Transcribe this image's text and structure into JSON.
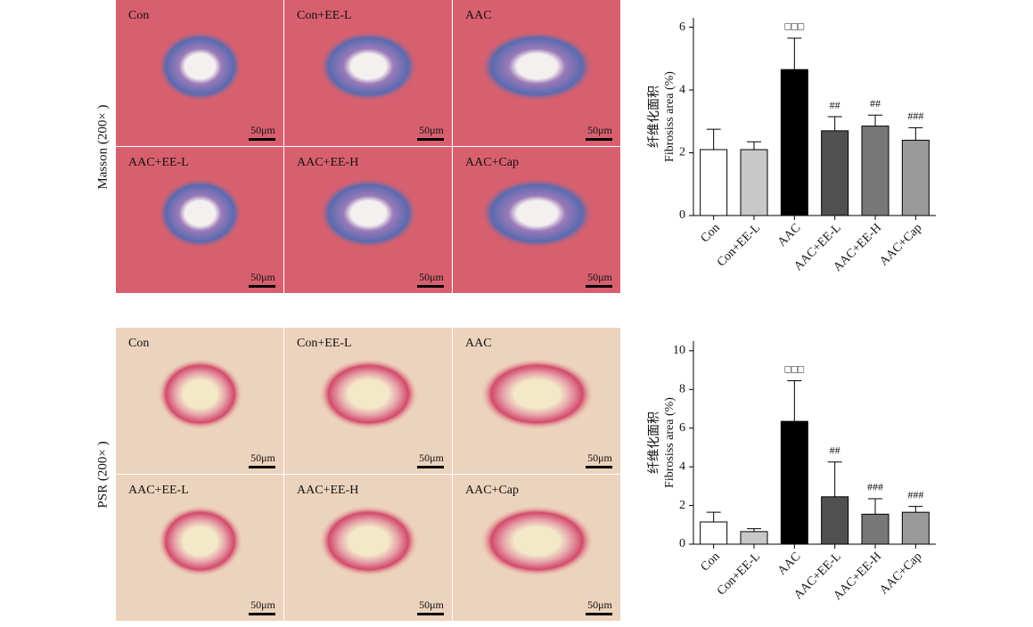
{
  "figure": {
    "scale_bar": "50μm",
    "rows": [
      {
        "label": "Masson (200× )",
        "panels": [
          "Con",
          "Con+EE-L",
          "AAC",
          "AAC+EE-L",
          "AAC+EE-H",
          "AAC+Cap"
        ]
      },
      {
        "label": "PSR (200× )",
        "panels": [
          "Con",
          "Con+EE-L",
          "AAC",
          "AAC+EE-L",
          "AAC+EE-H",
          "AAC+Cap"
        ]
      }
    ]
  },
  "chart_data": [
    {
      "type": "bar",
      "y_label": [
        "纤维化面积",
        "Fibrosiss area (%)"
      ],
      "categories": [
        "Con",
        "Con+EE-L",
        "AAC",
        "AAC+EE-L",
        "AAC+EE-H",
        "AAC+Cap"
      ],
      "values": [
        2.1,
        2.1,
        4.65,
        2.7,
        2.85,
        2.4
      ],
      "errors": [
        0.65,
        0.25,
        1.0,
        0.45,
        0.35,
        0.4
      ],
      "annotations": [
        null,
        null,
        "□□□",
        "##",
        "##",
        "###"
      ],
      "colors": [
        "#ffffff",
        "#c8c8c8",
        "#000000",
        "#505050",
        "#787878",
        "#9a9a9a"
      ],
      "ylim": [
        0,
        6.3
      ],
      "yticks": [
        0,
        2,
        4,
        6
      ]
    },
    {
      "type": "bar",
      "y_label": [
        "纤维化面积",
        "Fibrosiss area (%)"
      ],
      "categories": [
        "Con",
        "Con+EE-L",
        "AAC",
        "AAC+EE-L",
        "AAC+EE-H",
        "AAC+Cap"
      ],
      "values": [
        1.15,
        0.65,
        6.35,
        2.45,
        1.55,
        1.65
      ],
      "errors": [
        0.5,
        0.15,
        2.1,
        1.8,
        0.8,
        0.3
      ],
      "annotations": [
        null,
        null,
        "□□□",
        "##",
        "###",
        "###"
      ],
      "colors": [
        "#ffffff",
        "#c8c8c8",
        "#000000",
        "#505050",
        "#787878",
        "#9a9a9a"
      ],
      "ylim": [
        0,
        10.5
      ],
      "yticks": [
        0,
        2,
        4,
        6,
        8,
        10
      ]
    }
  ]
}
